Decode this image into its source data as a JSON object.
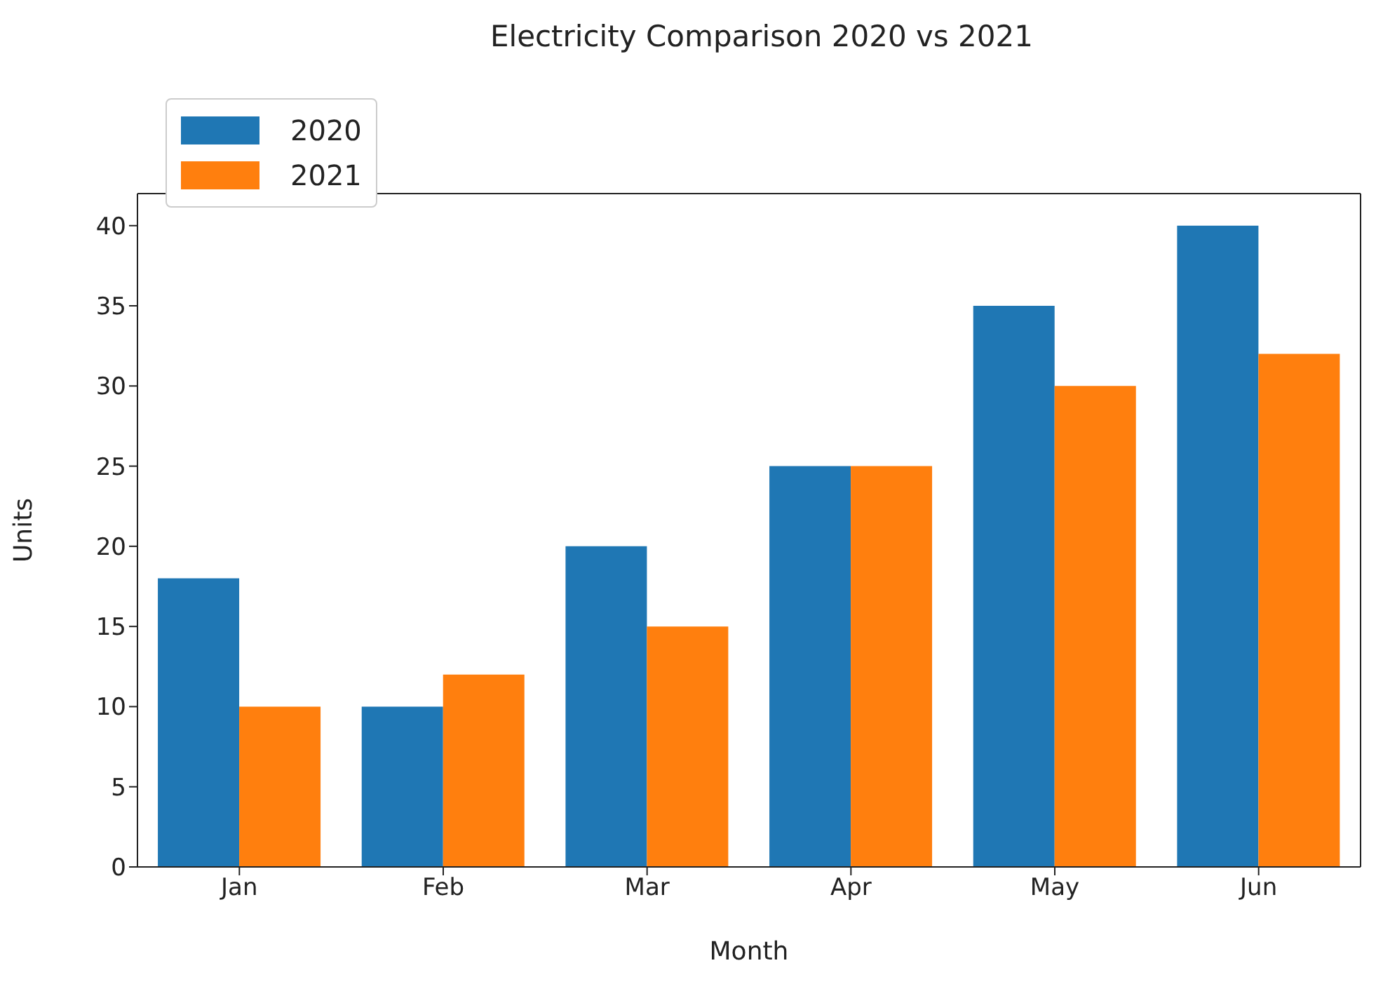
{
  "chart_data": {
    "type": "bar",
    "title": "Electricity Comparison 2020 vs 2021",
    "xlabel": "Month",
    "ylabel": "Units",
    "categories": [
      "Jan",
      "Feb",
      "Mar",
      "Apr",
      "May",
      "Jun"
    ],
    "series": [
      {
        "name": "2020",
        "color": "#1f77b4",
        "values": [
          18,
          10,
          20,
          25,
          35,
          40
        ]
      },
      {
        "name": "2021",
        "color": "#ff7f0e",
        "values": [
          10,
          12,
          15,
          25,
          30,
          32
        ]
      }
    ],
    "ylim": [
      0,
      42
    ],
    "yticks": [
      0,
      5,
      10,
      15,
      20,
      25,
      30,
      35,
      40
    ],
    "grid": false,
    "legend": "top left"
  }
}
